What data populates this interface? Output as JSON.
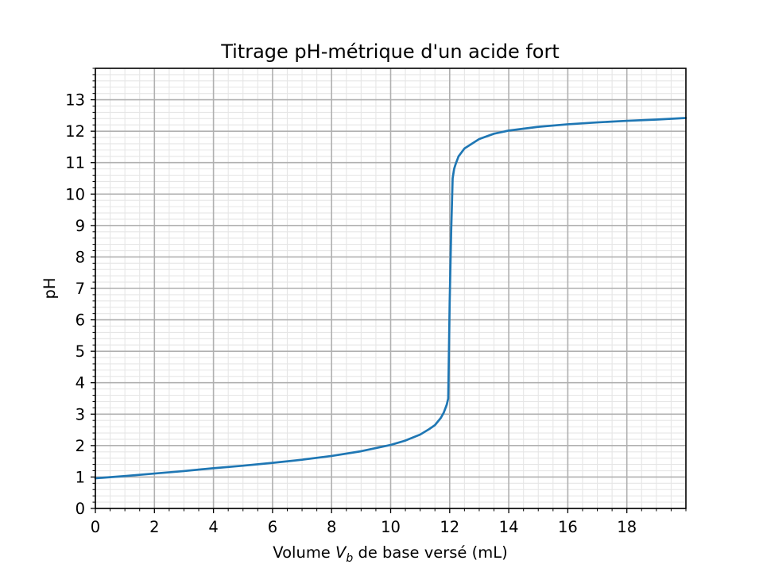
{
  "chart_data": {
    "type": "line",
    "title": "Titrage pH-métrique d'un acide fort",
    "xlabel": {
      "prefix": "Volume ",
      "variable": "V",
      "subscript": "b",
      "suffix": " de base versé (mL)"
    },
    "ylabel": "pH",
    "xlim": [
      0,
      20
    ],
    "ylim": [
      0,
      14
    ],
    "x_ticks": [
      0,
      2,
      4,
      6,
      8,
      10,
      12,
      14,
      16,
      18
    ],
    "y_ticks": [
      0,
      1,
      2,
      3,
      4,
      5,
      6,
      7,
      8,
      9,
      10,
      11,
      12,
      13
    ],
    "x_minor_step": 0.5,
    "y_minor_step": 0.2,
    "grid": true,
    "minor_grid": true,
    "series": [
      {
        "color": "#1f77b4",
        "x": [
          0,
          1,
          2,
          3,
          4,
          5,
          6,
          7,
          8,
          9,
          10,
          10.5,
          11,
          11.3,
          11.5,
          11.7,
          11.8,
          11.9,
          11.95,
          12.0,
          12.05,
          12.1,
          12.15,
          12.2,
          12.3,
          12.5,
          13,
          13.5,
          14,
          15,
          16,
          17,
          18,
          19,
          20
        ],
        "y": [
          0.96,
          1.03,
          1.11,
          1.19,
          1.28,
          1.36,
          1.45,
          1.55,
          1.67,
          1.82,
          2.02,
          2.16,
          2.35,
          2.52,
          2.65,
          2.88,
          3.05,
          3.3,
          3.5,
          6.6,
          8.8,
          10.5,
          10.8,
          10.95,
          11.2,
          11.45,
          11.75,
          11.92,
          12.02,
          12.14,
          12.22,
          12.28,
          12.33,
          12.37,
          12.42
        ]
      }
    ]
  }
}
